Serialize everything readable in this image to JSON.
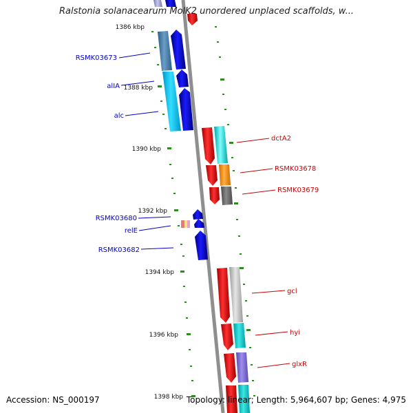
{
  "title": "Ralstonia solanacearum MolK2 unordered unplaced scaffolds, w...",
  "footer": {
    "accession": "Accession: NS_000197",
    "topology": "Topology: linear; Length: 5,964,607 bp; Genes: 4,975"
  },
  "scale_labels": [
    "1386 kbp",
    "1388 kbp",
    "1390 kbp",
    "1392 kbp",
    "1394 kbp",
    "1396 kbp",
    "1398 kbp"
  ],
  "left_genes": [
    {
      "label": "RSMK03673",
      "color": "#0000cc"
    },
    {
      "label": "alIA",
      "color": "#0000cc"
    },
    {
      "label": "alc",
      "color": "#0000cc"
    },
    {
      "label": "RSMK03680",
      "color": "#0000cc"
    },
    {
      "label": "relE",
      "color": "#0000cc"
    },
    {
      "label": "RSMK03682",
      "color": "#0000cc"
    }
  ],
  "right_genes": [
    {
      "label": "dctA2",
      "color": "#cc0000"
    },
    {
      "label": "RSMK03678",
      "color": "#cc0000"
    },
    {
      "label": "RSMK03679",
      "color": "#cc0000"
    },
    {
      "label": "gcl",
      "color": "#cc0000"
    },
    {
      "label": "hyi",
      "color": "#cc0000"
    },
    {
      "label": "glxR",
      "color": "#cc0000"
    }
  ],
  "colors": {
    "backbone": "#8f8f8f",
    "tick": "#2e8b20",
    "forward_strand": "#0000ee",
    "reverse_strand": "#ee0000"
  }
}
